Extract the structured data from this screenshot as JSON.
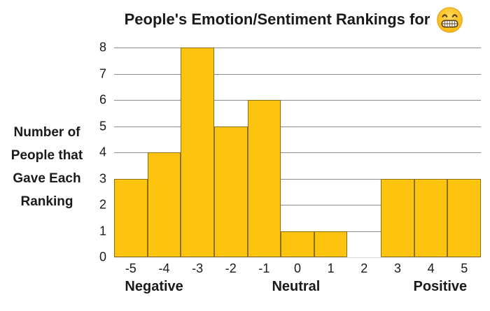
{
  "title": {
    "text": "People's Emotion/Sentiment Rankings for",
    "emoji": "beaming-face-with-smiling-eyes"
  },
  "ylabel_lines": [
    "Number of",
    "People that",
    "Gave Each",
    "Ranking"
  ],
  "colors": {
    "bar_fill": "#FDC40F",
    "bar_border": "#8E6E12",
    "gridline": "#8C8C8C",
    "baseline": "#D9D9D9",
    "text": "#1A1A1A",
    "emoji_face": "#FCC21C",
    "emoji_face_edge": "#DFA022",
    "emoji_features": "#5E4014"
  },
  "chart_data": {
    "type": "bar",
    "title": "People's Emotion/Sentiment Rankings for 😁",
    "categories": [
      "-5",
      "-4",
      "-3",
      "-2",
      "-1",
      "0",
      "1",
      "2",
      "3",
      "4",
      "5"
    ],
    "values": [
      3,
      4,
      8,
      5,
      6,
      1,
      1,
      0,
      3,
      3,
      3
    ],
    "xlabel": "",
    "ylabel": "Number of People that Gave Each Ranking",
    "ylim": [
      0,
      8
    ],
    "yticks": [
      0,
      1,
      2,
      3,
      4,
      5,
      6,
      7,
      8
    ],
    "grid": "horizontal",
    "legend": "none",
    "group_labels": [
      {
        "label": "Negative",
        "position_pct": 10.9
      },
      {
        "label": "Neutral",
        "position_pct": 49.6
      },
      {
        "label": "Positive",
        "position_pct": 88.9
      }
    ]
  }
}
